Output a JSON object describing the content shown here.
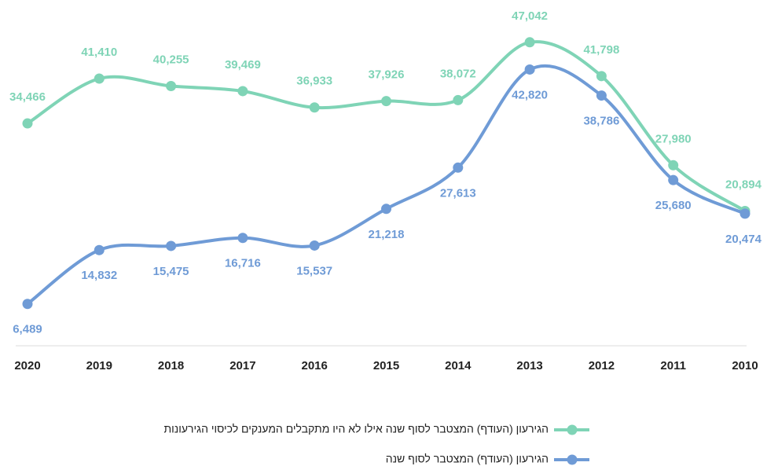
{
  "chart_data": {
    "type": "line",
    "categories": [
      "2020",
      "2019",
      "2018",
      "2017",
      "2016",
      "2015",
      "2014",
      "2013",
      "2012",
      "2011",
      "2010"
    ],
    "ylim": [
      0,
      50000
    ],
    "series": [
      {
        "name": "הגירעון (העודף) המצטבר לסוף שנה אילו לא היו מתקבלים המענקים לכיסוי הגירעונות",
        "color": "#7fd4b6",
        "values": [
          34466,
          41410,
          40255,
          39469,
          36933,
          37926,
          38072,
          47042,
          41798,
          27980,
          20894
        ],
        "value_labels": [
          "34,466",
          "41,410",
          "40,255",
          "39,469",
          "36,933",
          "37,926",
          "38,072",
          "47,042",
          "41,798",
          "27,980",
          "20,894"
        ]
      },
      {
        "name": "הגירעון (העודף) המצטבר לסוף שנה",
        "color": "#6f9bd6",
        "values": [
          6489,
          14832,
          15475,
          16716,
          15537,
          21218,
          27613,
          42820,
          38786,
          25680,
          20474
        ],
        "value_labels": [
          "6,489",
          "14,832",
          "15,475",
          "16,716",
          "15,537",
          "21,218",
          "27,613",
          "42,820",
          "38,786",
          "25,680",
          "20,474"
        ]
      }
    ]
  }
}
